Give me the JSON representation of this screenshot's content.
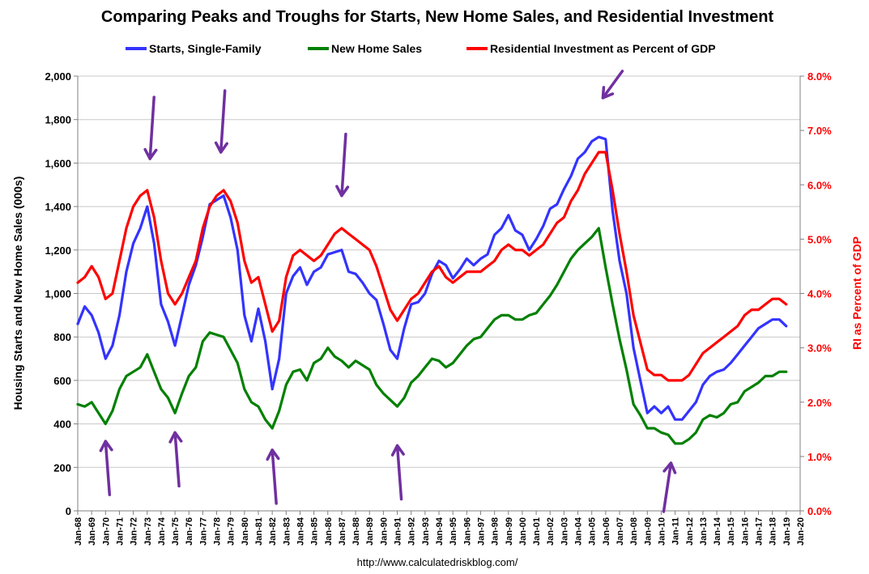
{
  "chart_data": {
    "type": "line",
    "title": "Comparing Peaks and Troughs for Starts, New Home Sales, and Residential Investment",
    "ylabel": "Housing Starts and New Home Sales (000s)",
    "y2label": "RI as Percent of GDP",
    "ylim": [
      0,
      2000
    ],
    "y2lim": [
      0,
      8
    ],
    "yticks": [
      "0",
      "200",
      "400",
      "600",
      "800",
      "1,000",
      "1,200",
      "1,400",
      "1,600",
      "1,800",
      "2,000"
    ],
    "y2ticks": [
      "0.0%",
      "1.0%",
      "2.0%",
      "3.0%",
      "4.0%",
      "5.0%",
      "6.0%",
      "7.0%",
      "8.0%"
    ],
    "xticks": [
      "Jan-68",
      "Jan-69",
      "Jan-70",
      "Jan-71",
      "Jan-72",
      "Jan-73",
      "Jan-74",
      "Jan-75",
      "Jan-76",
      "Jan-77",
      "Jan-78",
      "Jan-79",
      "Jan-80",
      "Jan-81",
      "Jan-82",
      "Jan-83",
      "Jan-84",
      "Jan-85",
      "Jan-86",
      "Jan-87",
      "Jan-88",
      "Jan-89",
      "Jan-90",
      "Jan-91",
      "Jan-92",
      "Jan-93",
      "Jan-94",
      "Jan-95",
      "Jan-96",
      "Jan-97",
      "Jan-98",
      "Jan-99",
      "Jan-00",
      "Jan-01",
      "Jan-02",
      "Jan-03",
      "Jan-04",
      "Jan-05",
      "Jan-06",
      "Jan-07",
      "Jan-08",
      "Jan-09",
      "Jan-10",
      "Jan-11",
      "Jan-12",
      "Jan-13",
      "Jan-14",
      "Jan-15",
      "Jan-16",
      "Jan-17",
      "Jan-18",
      "Jan-19",
      "Jan-20"
    ],
    "xlim": [
      1968,
      2020
    ],
    "legend_position": "top",
    "grid": "horizontal",
    "series": [
      {
        "name": "Starts, Single-Family",
        "axis": "left",
        "color": "#3333ff",
        "x": [
          1968.0,
          1968.5,
          1969.0,
          1969.5,
          1970.0,
          1970.5,
          1971.0,
          1971.5,
          1972.0,
          1972.5,
          1973.0,
          1973.5,
          1974.0,
          1974.5,
          1975.0,
          1975.5,
          1976.0,
          1976.5,
          1977.0,
          1977.5,
          1978.0,
          1978.5,
          1979.0,
          1979.5,
          1980.0,
          1980.5,
          1981.0,
          1981.5,
          1982.0,
          1982.5,
          1983.0,
          1983.5,
          1984.0,
          1984.5,
          1985.0,
          1985.5,
          1986.0,
          1986.5,
          1987.0,
          1987.5,
          1988.0,
          1988.5,
          1989.0,
          1989.5,
          1990.0,
          1990.5,
          1991.0,
          1991.5,
          1992.0,
          1992.5,
          1993.0,
          1993.5,
          1994.0,
          1994.5,
          1995.0,
          1995.5,
          1996.0,
          1996.5,
          1997.0,
          1997.5,
          1998.0,
          1998.5,
          1999.0,
          1999.5,
          2000.0,
          2000.5,
          2001.0,
          2001.5,
          2002.0,
          2002.5,
          2003.0,
          2003.5,
          2004.0,
          2004.5,
          2005.0,
          2005.5,
          2006.0,
          2006.5,
          2007.0,
          2007.5,
          2008.0,
          2008.5,
          2009.0,
          2009.5,
          2010.0,
          2010.5,
          2011.0,
          2011.5,
          2012.0,
          2012.5,
          2013.0,
          2013.5,
          2014.0,
          2014.5,
          2015.0,
          2015.5,
          2016.0,
          2016.5,
          2017.0,
          2017.5,
          2018.0,
          2018.5,
          2019.0
        ],
        "y": [
          860,
          940,
          900,
          820,
          700,
          760,
          900,
          1100,
          1230,
          1300,
          1400,
          1230,
          950,
          870,
          760,
          900,
          1040,
          1130,
          1260,
          1410,
          1430,
          1450,
          1350,
          1200,
          900,
          780,
          930,
          780,
          560,
          700,
          1000,
          1080,
          1120,
          1040,
          1100,
          1120,
          1180,
          1190,
          1200,
          1100,
          1090,
          1050,
          1000,
          970,
          860,
          740,
          700,
          840,
          950,
          960,
          1000,
          1090,
          1150,
          1130,
          1070,
          1110,
          1160,
          1130,
          1160,
          1180,
          1270,
          1300,
          1360,
          1290,
          1270,
          1200,
          1250,
          1310,
          1390,
          1410,
          1480,
          1540,
          1620,
          1650,
          1700,
          1720,
          1710,
          1380,
          1150,
          1000,
          750,
          600,
          450,
          480,
          450,
          480,
          420,
          420,
          460,
          500,
          580,
          620,
          640,
          650,
          680,
          720,
          760,
          800,
          840,
          860,
          880,
          880,
          850
        ]
      },
      {
        "name": "New Home Sales",
        "axis": "left",
        "color": "#008000",
        "x": [
          1968.0,
          1968.5,
          1969.0,
          1969.5,
          1970.0,
          1970.5,
          1971.0,
          1971.5,
          1972.0,
          1972.5,
          1973.0,
          1973.5,
          1974.0,
          1974.5,
          1975.0,
          1975.5,
          1976.0,
          1976.5,
          1977.0,
          1977.5,
          1978.0,
          1978.5,
          1979.0,
          1979.5,
          1980.0,
          1980.5,
          1981.0,
          1981.5,
          1982.0,
          1982.5,
          1983.0,
          1983.5,
          1984.0,
          1984.5,
          1985.0,
          1985.5,
          1986.0,
          1986.5,
          1987.0,
          1987.5,
          1988.0,
          1988.5,
          1989.0,
          1989.5,
          1990.0,
          1990.5,
          1991.0,
          1991.5,
          1992.0,
          1992.5,
          1993.0,
          1993.5,
          1994.0,
          1994.5,
          1995.0,
          1995.5,
          1996.0,
          1996.5,
          1997.0,
          1997.5,
          1998.0,
          1998.5,
          1999.0,
          1999.5,
          2000.0,
          2000.5,
          2001.0,
          2001.5,
          2002.0,
          2002.5,
          2003.0,
          2003.5,
          2004.0,
          2004.5,
          2005.0,
          2005.5,
          2006.0,
          2006.5,
          2007.0,
          2007.5,
          2008.0,
          2008.5,
          2009.0,
          2009.5,
          2010.0,
          2010.5,
          2011.0,
          2011.5,
          2012.0,
          2012.5,
          2013.0,
          2013.5,
          2014.0,
          2014.5,
          2015.0,
          2015.5,
          2016.0,
          2016.5,
          2017.0,
          2017.5,
          2018.0,
          2018.5,
          2019.0
        ],
        "y": [
          490,
          480,
          500,
          450,
          400,
          460,
          560,
          620,
          640,
          660,
          720,
          640,
          560,
          520,
          450,
          540,
          620,
          660,
          780,
          820,
          810,
          800,
          740,
          680,
          560,
          500,
          480,
          420,
          380,
          460,
          580,
          640,
          650,
          600,
          680,
          700,
          750,
          710,
          690,
          660,
          690,
          670,
          650,
          580,
          540,
          510,
          480,
          520,
          590,
          620,
          660,
          700,
          690,
          660,
          680,
          720,
          760,
          790,
          800,
          840,
          880,
          900,
          900,
          880,
          880,
          900,
          910,
          950,
          990,
          1040,
          1100,
          1160,
          1200,
          1230,
          1260,
          1300,
          1120,
          950,
          790,
          650,
          490,
          440,
          380,
          380,
          360,
          350,
          310,
          310,
          330,
          360,
          420,
          440,
          430,
          450,
          490,
          500,
          550,
          570,
          590,
          620,
          620,
          640,
          640
        ]
      },
      {
        "name": "Residential Investment as Percent of GDP",
        "axis": "right",
        "color": "#ff0000",
        "x": [
          1968.0,
          1968.5,
          1969.0,
          1969.5,
          1970.0,
          1970.5,
          1971.0,
          1971.5,
          1972.0,
          1972.5,
          1973.0,
          1973.5,
          1974.0,
          1974.5,
          1975.0,
          1975.5,
          1976.0,
          1976.5,
          1977.0,
          1977.5,
          1978.0,
          1978.5,
          1979.0,
          1979.5,
          1980.0,
          1980.5,
          1981.0,
          1981.5,
          1982.0,
          1982.5,
          1983.0,
          1983.5,
          1984.0,
          1984.5,
          1985.0,
          1985.5,
          1986.0,
          1986.5,
          1987.0,
          1987.5,
          1988.0,
          1988.5,
          1989.0,
          1989.5,
          1990.0,
          1990.5,
          1991.0,
          1991.5,
          1992.0,
          1992.5,
          1993.0,
          1993.5,
          1994.0,
          1994.5,
          1995.0,
          1995.5,
          1996.0,
          1996.5,
          1997.0,
          1997.5,
          1998.0,
          1998.5,
          1999.0,
          1999.5,
          2000.0,
          2000.5,
          2001.0,
          2001.5,
          2002.0,
          2002.5,
          2003.0,
          2003.5,
          2004.0,
          2004.5,
          2005.0,
          2005.5,
          2006.0,
          2006.5,
          2007.0,
          2007.5,
          2008.0,
          2008.5,
          2009.0,
          2009.5,
          2010.0,
          2010.5,
          2011.0,
          2011.5,
          2012.0,
          2012.5,
          2013.0,
          2013.5,
          2014.0,
          2014.5,
          2015.0,
          2015.5,
          2016.0,
          2016.5,
          2017.0,
          2017.5,
          2018.0,
          2018.5,
          2019.0
        ],
        "y": [
          4.2,
          4.3,
          4.5,
          4.3,
          3.9,
          4.0,
          4.6,
          5.2,
          5.6,
          5.8,
          5.9,
          5.4,
          4.6,
          4.0,
          3.8,
          4.0,
          4.3,
          4.6,
          5.2,
          5.6,
          5.8,
          5.9,
          5.7,
          5.3,
          4.6,
          4.2,
          4.3,
          3.8,
          3.3,
          3.5,
          4.3,
          4.7,
          4.8,
          4.7,
          4.6,
          4.7,
          4.9,
          5.1,
          5.2,
          5.1,
          5.0,
          4.9,
          4.8,
          4.5,
          4.1,
          3.7,
          3.5,
          3.7,
          3.9,
          4.0,
          4.2,
          4.4,
          4.5,
          4.3,
          4.2,
          4.3,
          4.4,
          4.4,
          4.4,
          4.5,
          4.6,
          4.8,
          4.9,
          4.8,
          4.8,
          4.7,
          4.8,
          4.9,
          5.1,
          5.3,
          5.4,
          5.7,
          5.9,
          6.2,
          6.4,
          6.6,
          6.6,
          5.9,
          5.1,
          4.4,
          3.6,
          3.1,
          2.6,
          2.5,
          2.5,
          2.4,
          2.4,
          2.4,
          2.5,
          2.7,
          2.9,
          3.0,
          3.1,
          3.2,
          3.3,
          3.4,
          3.6,
          3.7,
          3.7,
          3.8,
          3.9,
          3.9,
          3.8
        ]
      }
    ],
    "annotations": [
      {
        "type": "arrow",
        "direction": "down",
        "x": 1973.2,
        "y": 1620
      },
      {
        "type": "arrow",
        "direction": "down",
        "x": 1978.3,
        "y": 1650
      },
      {
        "type": "arrow",
        "direction": "down",
        "x": 1987.0,
        "y": 1450
      },
      {
        "type": "arrow",
        "direction": "down",
        "x": 2005.8,
        "y": 1900
      },
      {
        "type": "arrow",
        "direction": "up",
        "x": 1970.0,
        "y": 320
      },
      {
        "type": "arrow",
        "direction": "up",
        "x": 1975.0,
        "y": 360
      },
      {
        "type": "arrow",
        "direction": "up",
        "x": 1982.0,
        "y": 280
      },
      {
        "type": "arrow",
        "direction": "up",
        "x": 1991.0,
        "y": 300
      },
      {
        "type": "arrow",
        "direction": "up",
        "x": 2010.7,
        "y": 220
      }
    ],
    "source": "http://www.calculatedriskblog.com/"
  }
}
